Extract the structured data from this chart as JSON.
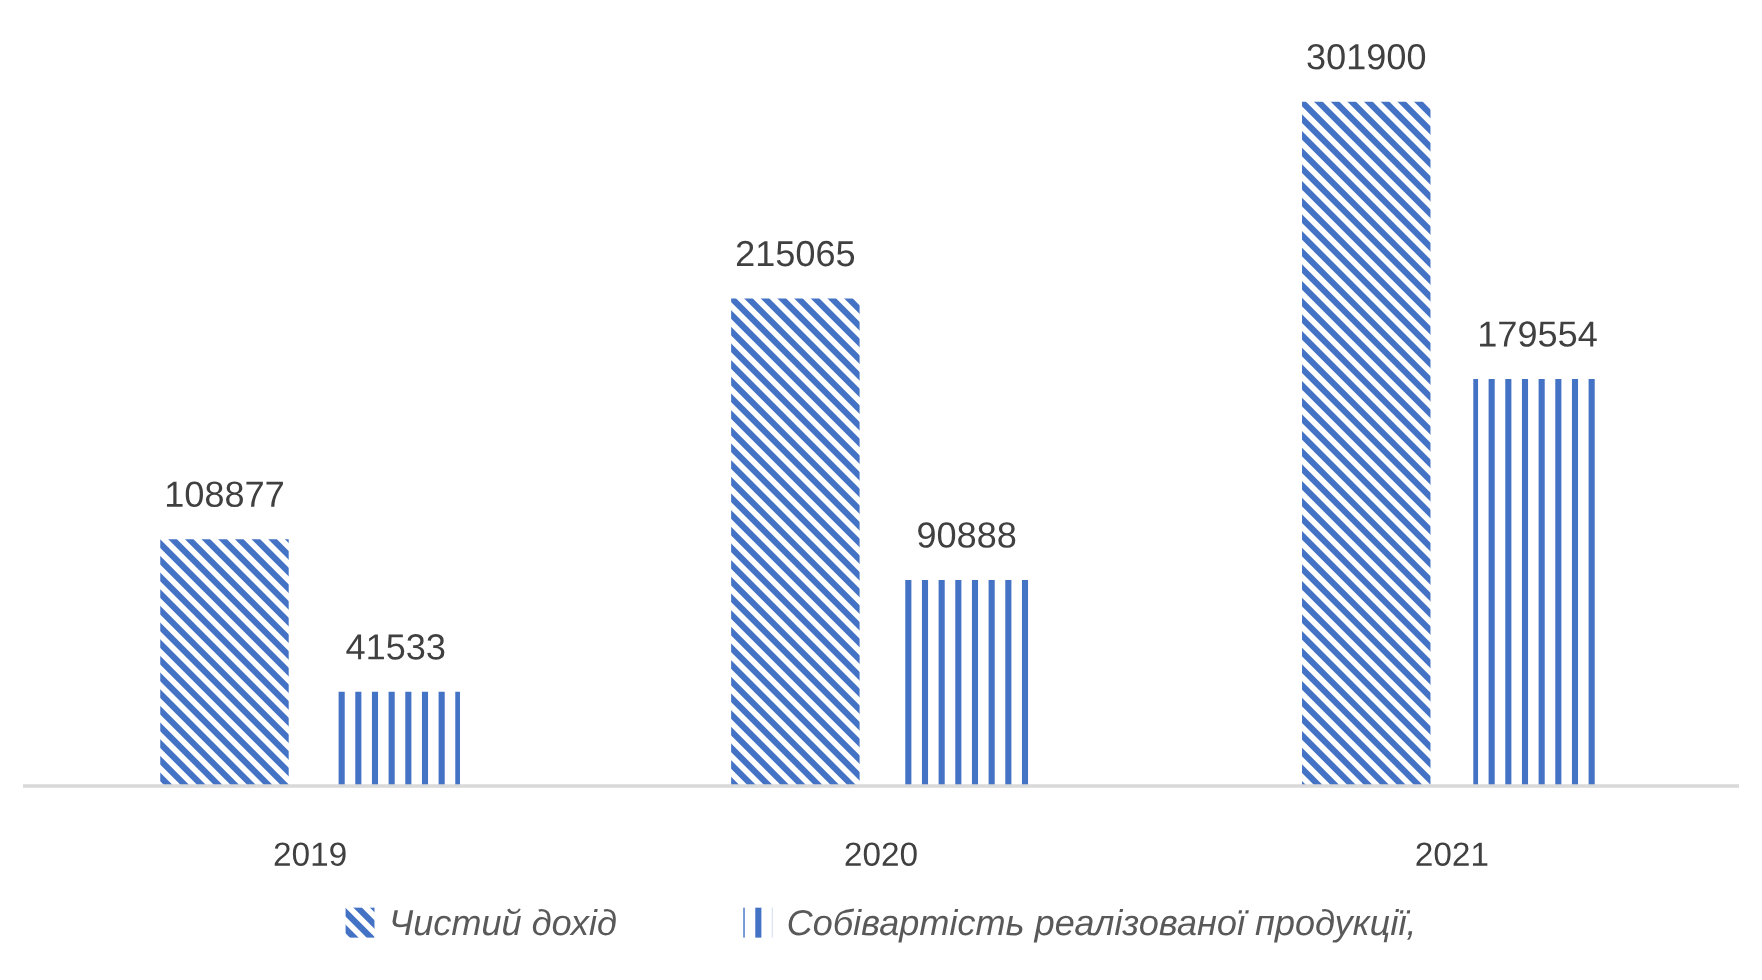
{
  "chart_data": {
    "type": "bar",
    "categories": [
      "2019",
      "2020",
      "2021"
    ],
    "series": [
      {
        "name": "Чистий дохід",
        "color": "#4472c4",
        "values": [
          108877,
          215065,
          301900
        ]
      },
      {
        "name": "Собівартість реалізованої продукції,",
        "color": "#4472c4",
        "values": [
          41533,
          90888,
          179554
        ]
      }
    ],
    "data_labels": true,
    "legend": "bottom",
    "grid": false
  }
}
